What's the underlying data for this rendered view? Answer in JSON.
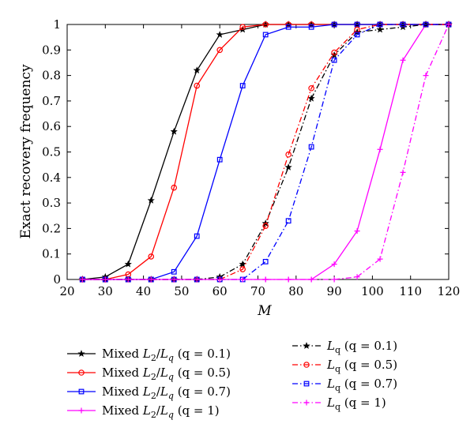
{
  "chart_data": {
    "type": "line",
    "xlabel": "M",
    "ylabel": "Exact recovery frequency",
    "xlim": [
      20,
      120
    ],
    "ylim": [
      0,
      1
    ],
    "xticks": [
      20,
      30,
      40,
      50,
      60,
      70,
      80,
      90,
      100,
      110,
      120
    ],
    "yticks": [
      0,
      0.1,
      0.2,
      0.3,
      0.4,
      0.5,
      0.6,
      0.7,
      0.8,
      0.9,
      1
    ],
    "x": [
      24,
      30,
      36,
      42,
      48,
      54,
      60,
      66,
      72,
      78,
      84,
      90,
      96,
      102,
      108,
      114,
      120
    ],
    "grid": false,
    "legend_placement": "bottom",
    "series": [
      {
        "name": "Mixed L2/Lq (q = 0.1)",
        "legend_prefix": "Mixed ",
        "legend_main": "L",
        "legend_sub1": "2",
        "legend_slash": "/",
        "legend_main2": "L",
        "legend_sub2": "q",
        "legend_param": " (q = 0.1)",
        "color": "#000000",
        "dash": "solid",
        "marker": "star",
        "values": [
          0,
          0.01,
          0.06,
          0.31,
          0.58,
          0.82,
          0.96,
          0.98,
          1,
          1,
          1,
          1,
          1,
          1,
          1,
          1,
          1
        ]
      },
      {
        "name": "Mixed L2/Lq (q = 0.5)",
        "legend_prefix": "Mixed ",
        "legend_main": "L",
        "legend_sub1": "2",
        "legend_slash": "/",
        "legend_main2": "L",
        "legend_sub2": "q",
        "legend_param": " (q = 0.5)",
        "color": "#ff0000",
        "dash": "solid",
        "marker": "circle",
        "values": [
          0,
          0,
          0.02,
          0.09,
          0.36,
          0.76,
          0.9,
          0.99,
          1,
          1,
          1,
          1,
          1,
          1,
          1,
          1,
          1
        ]
      },
      {
        "name": "Mixed L2/Lq (q = 0.7)",
        "legend_prefix": "Mixed ",
        "legend_main": "L",
        "legend_sub1": "2",
        "legend_slash": "/",
        "legend_main2": "L",
        "legend_sub2": "q",
        "legend_param": " (q = 0.7)",
        "color": "#0000ff",
        "dash": "solid",
        "marker": "square",
        "values": [
          0,
          0,
          0,
          0,
          0.03,
          0.17,
          0.47,
          0.76,
          0.96,
          0.99,
          0.99,
          1,
          1,
          1,
          1,
          1,
          1
        ]
      },
      {
        "name": "Mixed L2/Lq (q = 1)",
        "legend_prefix": "Mixed ",
        "legend_main": "L",
        "legend_sub1": "2",
        "legend_slash": "/",
        "legend_main2": "L",
        "legend_sub2": "q",
        "legend_param": " (q = 1)",
        "color": "#ff00ff",
        "dash": "solid",
        "marker": "plus",
        "values": [
          0,
          0,
          0,
          0,
          0,
          0,
          0,
          0,
          0,
          0,
          0,
          0.06,
          0.19,
          0.51,
          0.86,
          1,
          1
        ]
      },
      {
        "name": "Lq (q = 0.1)",
        "legend_prefix": "",
        "legend_main": "L",
        "legend_sub1": "q",
        "legend_slash": "",
        "legend_main2": "",
        "legend_sub2": "",
        "legend_param": " (q = 0.1)",
        "color": "#000000",
        "dash": "dashdot",
        "marker": "star",
        "values": [
          0,
          0,
          0,
          0,
          0,
          0,
          0.01,
          0.06,
          0.22,
          0.44,
          0.71,
          0.88,
          0.97,
          0.98,
          0.99,
          1,
          1
        ]
      },
      {
        "name": "Lq (q = 0.5)",
        "legend_prefix": "",
        "legend_main": "L",
        "legend_sub1": "q",
        "legend_slash": "",
        "legend_main2": "",
        "legend_sub2": "",
        "legend_param": " (q = 0.5)",
        "color": "#ff0000",
        "dash": "dashdot",
        "marker": "circle",
        "values": [
          0,
          0,
          0,
          0,
          0,
          0,
          0,
          0.04,
          0.21,
          0.49,
          0.75,
          0.89,
          0.98,
          1,
          1,
          1,
          1
        ]
      },
      {
        "name": "Lq (q = 0.7)",
        "legend_prefix": "",
        "legend_main": "L",
        "legend_sub1": "q",
        "legend_slash": "",
        "legend_main2": "",
        "legend_sub2": "",
        "legend_param": " (q = 0.7)",
        "color": "#0000ff",
        "dash": "dashdot",
        "marker": "square",
        "values": [
          0,
          0,
          0,
          0,
          0,
          0,
          0,
          0,
          0.07,
          0.23,
          0.52,
          0.86,
          0.96,
          1,
          1,
          1,
          1
        ]
      },
      {
        "name": "Lq (q = 1)",
        "legend_prefix": "",
        "legend_main": "L",
        "legend_sub1": "q",
        "legend_slash": "",
        "legend_main2": "",
        "legend_sub2": "",
        "legend_param": " (q = 1)",
        "color": "#ff00ff",
        "dash": "dashdot",
        "marker": "plus",
        "values": [
          0,
          0,
          0,
          0,
          0,
          0,
          0,
          0,
          0,
          0,
          0,
          0,
          0.01,
          0.08,
          0.42,
          0.8,
          1
        ]
      }
    ]
  }
}
